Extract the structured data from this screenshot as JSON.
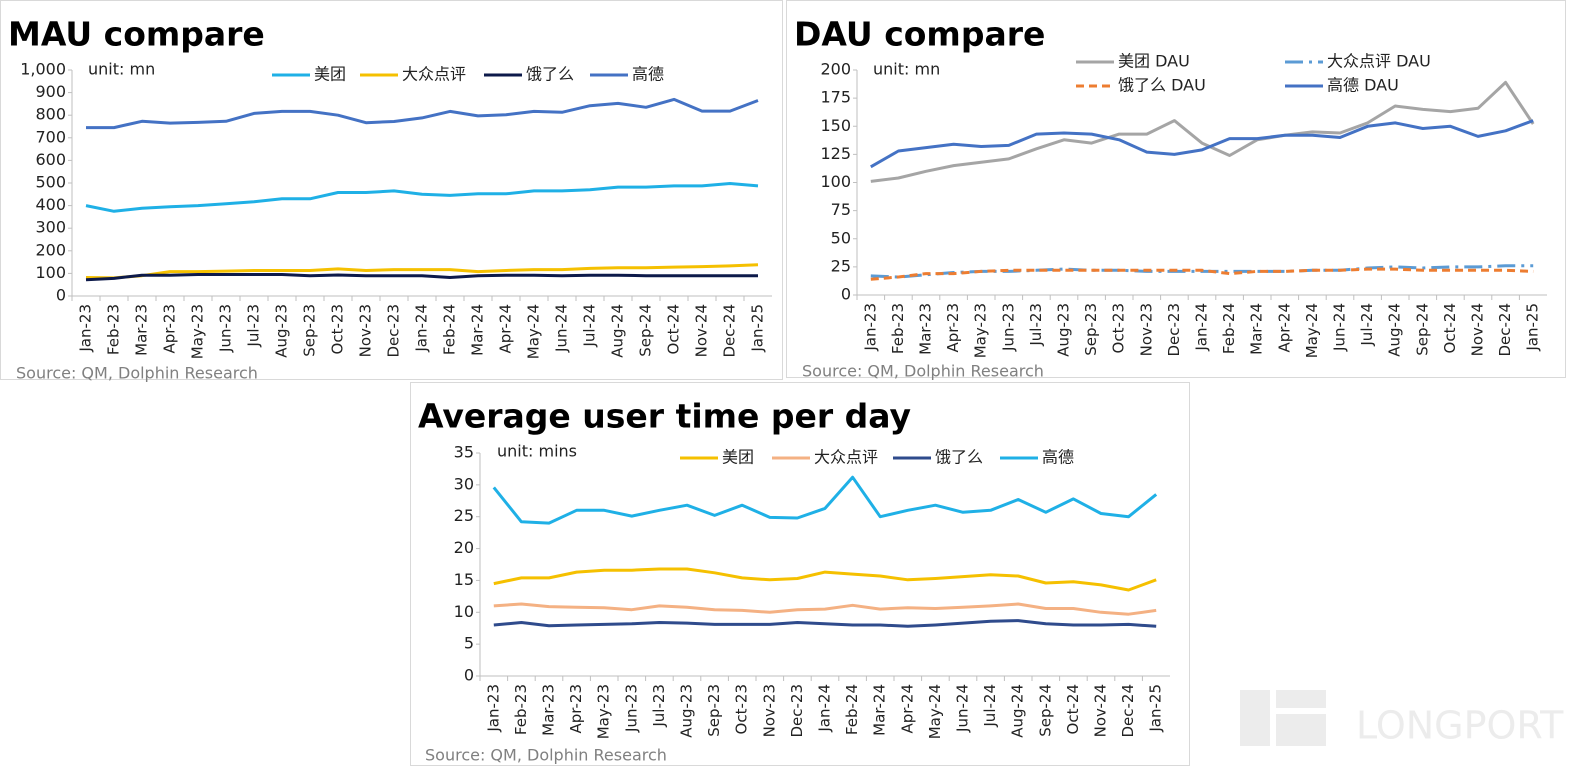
{
  "chart_data": [
    {
      "type": "line",
      "title": "MAU compare",
      "annotation": "unit: mn",
      "source": "Source: QM, Dolphin Research",
      "categories": [
        "Jan-23",
        "Feb-23",
        "Mar-23",
        "Apr-23",
        "May-23",
        "Jun-23",
        "Jul-23",
        "Aug-23",
        "Sep-23",
        "Oct-23",
        "Nov-23",
        "Dec-23",
        "Jan-24",
        "Feb-24",
        "Mar-24",
        "Apr-24",
        "May-24",
        "Jun-24",
        "Jul-24",
        "Aug-24",
        "Sep-24",
        "Oct-24",
        "Nov-24",
        "Dec-24",
        "Jan-25"
      ],
      "ylim": [
        0,
        1000
      ],
      "yticks": [
        0,
        100,
        200,
        300,
        400,
        500,
        600,
        700,
        800,
        900,
        {
          "value": 1000,
          "label": "1,000"
        }
      ],
      "series": [
        {
          "name": "美团",
          "color": "#1fb0e6",
          "values": [
            400,
            375,
            388,
            395,
            400,
            408,
            417,
            430,
            430,
            458,
            458,
            465,
            450,
            445,
            452,
            452,
            465,
            465,
            470,
            482,
            482,
            487,
            487,
            498,
            487
          ]
        },
        {
          "name": "大众点评",
          "color": "#f5c000",
          "values": [
            82,
            80,
            90,
            108,
            108,
            110,
            113,
            113,
            113,
            120,
            113,
            117,
            117,
            117,
            108,
            113,
            117,
            117,
            122,
            125,
            125,
            128,
            130,
            133,
            138
          ]
        },
        {
          "name": "饿了么",
          "color": "#0d1a4a",
          "values": [
            72,
            78,
            92,
            92,
            95,
            95,
            95,
            95,
            90,
            93,
            90,
            90,
            90,
            82,
            90,
            92,
            92,
            90,
            92,
            92,
            90,
            90,
            90,
            90,
            90
          ]
        },
        {
          "name": "高德",
          "color": "#4472c4",
          "values": [
            745,
            745,
            773,
            765,
            768,
            773,
            808,
            817,
            817,
            800,
            767,
            772,
            788,
            817,
            797,
            802,
            817,
            813,
            842,
            852,
            835,
            870,
            818,
            818,
            865
          ]
        }
      ]
    },
    {
      "type": "line",
      "title": "DAU compare",
      "annotation": "unit: mn",
      "source": "Source: QM, Dolphin Research",
      "categories": [
        "Jan-23",
        "Feb-23",
        "Mar-23",
        "Apr-23",
        "May-23",
        "Jun-23",
        "Jul-23",
        "Aug-23",
        "Sep-23",
        "Oct-23",
        "Nov-23",
        "Dec-23",
        "Jan-24",
        "Feb-24",
        "Mar-24",
        "Apr-24",
        "May-24",
        "Jun-24",
        "Jul-24",
        "Aug-24",
        "Sep-24",
        "Oct-24",
        "Nov-24",
        "Dec-24",
        "Jan-25"
      ],
      "ylim": [
        0,
        200
      ],
      "yticks": [
        0,
        25,
        50,
        75,
        100,
        125,
        150,
        175,
        200
      ],
      "series": [
        {
          "name": "美团 DAU",
          "color": "#a5a5a5",
          "dash": "solid",
          "values": [
            101,
            104,
            110,
            115,
            118,
            121,
            130,
            138,
            135,
            143,
            143,
            155,
            135,
            124,
            138,
            142,
            145,
            144,
            153,
            168,
            165,
            163,
            166,
            189,
            152
          ]
        },
        {
          "name": "大众点评 DAU",
          "color": "#5b9bd5",
          "dash": "dashdot",
          "values": [
            17,
            16,
            18,
            20,
            21,
            21,
            22,
            23,
            22,
            22,
            21,
            21,
            21,
            21,
            21,
            21,
            22,
            22,
            24,
            25,
            24,
            25,
            25,
            26,
            26
          ]
        },
        {
          "name": "饿了么 DAU",
          "color": "#ed7d31",
          "dash": "dashed",
          "values": [
            14,
            16,
            19,
            19,
            21,
            22,
            22,
            22,
            22,
            22,
            22,
            22,
            22,
            19,
            21,
            21,
            22,
            22,
            23,
            23,
            22,
            22,
            22,
            22,
            21
          ]
        },
        {
          "name": "高德 DAU",
          "color": "#4472c4",
          "dash": "solid",
          "values": [
            114,
            128,
            131,
            134,
            132,
            133,
            143,
            144,
            143,
            138,
            127,
            125,
            129,
            139,
            139,
            142,
            142,
            140,
            150,
            153,
            148,
            150,
            141,
            146,
            155
          ]
        }
      ]
    },
    {
      "type": "line",
      "title": "Average user time per day",
      "annotation": "unit: mins",
      "source": "Source: QM, Dolphin Research",
      "categories": [
        "Jan-23",
        "Feb-23",
        "Mar-23",
        "Apr-23",
        "May-23",
        "Jun-23",
        "Jul-23",
        "Aug-23",
        "Sep-23",
        "Oct-23",
        "Nov-23",
        "Dec-23",
        "Jan-24",
        "Feb-24",
        "Mar-24",
        "Apr-24",
        "May-24",
        "Jun-24",
        "Jul-24",
        "Aug-24",
        "Sep-24",
        "Oct-24",
        "Nov-24",
        "Dec-24",
        "Jan-25"
      ],
      "ylim": [
        0,
        35
      ],
      "yticks": [
        0,
        5,
        10,
        15,
        20,
        25,
        30,
        35
      ],
      "series": [
        {
          "name": "美团",
          "color": "#f5c000",
          "values": [
            14.5,
            15.4,
            15.4,
            16.3,
            16.6,
            16.6,
            16.8,
            16.8,
            16.2,
            15.4,
            15.1,
            15.3,
            16.3,
            16,
            15.7,
            15.1,
            15.3,
            15.6,
            15.9,
            15.7,
            14.6,
            14.8,
            14.3,
            13.5,
            15.1
          ]
        },
        {
          "name": "大众点评",
          "color": "#f4b183",
          "values": [
            11,
            11.3,
            10.9,
            10.8,
            10.7,
            10.4,
            11,
            10.8,
            10.4,
            10.3,
            10,
            10.4,
            10.5,
            11.1,
            10.5,
            10.7,
            10.6,
            10.8,
            11,
            11.3,
            10.6,
            10.6,
            10,
            9.7,
            10.3
          ]
        },
        {
          "name": "饿了么",
          "color": "#2f4b8c",
          "values": [
            8,
            8.4,
            7.9,
            8,
            8.1,
            8.2,
            8.4,
            8.3,
            8.1,
            8.1,
            8.1,
            8.4,
            8.2,
            8,
            8,
            7.8,
            8,
            8.3,
            8.6,
            8.7,
            8.2,
            8,
            8,
            8.1,
            7.8
          ]
        },
        {
          "name": "高德",
          "color": "#1fb0e6",
          "values": [
            29.6,
            24.2,
            24,
            26,
            26,
            25.1,
            26,
            26.8,
            25.2,
            26.8,
            24.9,
            24.8,
            26.3,
            31.2,
            25,
            26,
            26.8,
            25.7,
            26,
            27.7,
            25.7,
            27.8,
            25.5,
            25,
            28.5
          ]
        }
      ]
    }
  ],
  "watermark": "LONGPORT"
}
